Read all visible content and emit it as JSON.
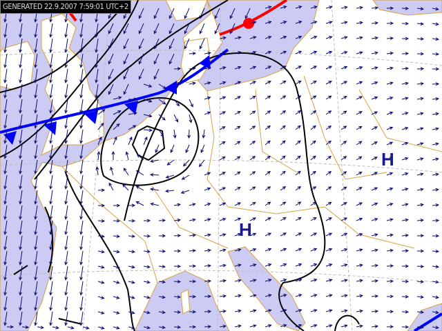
{
  "header": {
    "generated": "GENERATED 22.9.2007 7:59:01 UTC+2"
  },
  "pressure_centers": [
    {
      "label": "H",
      "type": "high-pressure"
    },
    {
      "label": "H",
      "type": "high-pressure"
    }
  ],
  "colors": {
    "sea": "#cbcbf4",
    "land": "#ffffff",
    "coast": "#d9a040",
    "isobar": "#000000",
    "cold_front": "#0000ff",
    "warm_front": "#ff0000",
    "wind_arrow": "#0a0a6e",
    "pressure_label": "#1a1a8c"
  },
  "layers": [
    "sea",
    "coastlines",
    "borders",
    "graticule",
    "isobars",
    "fronts",
    "wind-vectors",
    "pressure-centers"
  ]
}
